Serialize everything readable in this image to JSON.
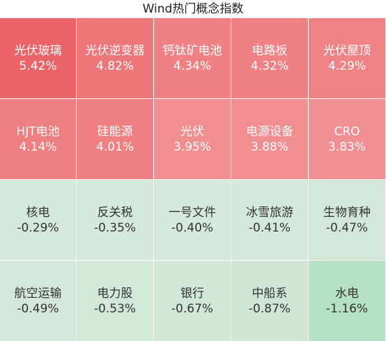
{
  "chart_data": {
    "type": "heatmap",
    "title": "Wind热门概念指数",
    "rows": 4,
    "cols": 5,
    "cells": [
      {
        "name": "光伏玻璃",
        "change": "5.42%",
        "value": 5.42,
        "color": "#ea6468"
      },
      {
        "name": "光伏逆变器",
        "change": "4.82%",
        "value": 4.82,
        "color": "#ed7679"
      },
      {
        "name": "钙钛矿电池",
        "change": "4.34%",
        "value": 4.34,
        "color": "#ef8083"
      },
      {
        "name": "电路板",
        "change": "4.32%",
        "value": 4.32,
        "color": "#ef8083"
      },
      {
        "name": "光伏屋顶",
        "change": "4.29%",
        "value": 4.29,
        "color": "#ef8285"
      },
      {
        "name": "HJT电池",
        "change": "4.14%",
        "value": 4.14,
        "color": "#ef7e81"
      },
      {
        "name": "硅能源",
        "change": "4.01%",
        "value": 4.01,
        "color": "#ef7f82"
      },
      {
        "name": "光伏",
        "change": "3.95%",
        "value": 3.95,
        "color": "#f08e90"
      },
      {
        "name": "电源设备",
        "change": "3.88%",
        "value": 3.88,
        "color": "#f08e90"
      },
      {
        "name": "CRO",
        "change": "3.83%",
        "value": 3.83,
        "color": "#f08f92"
      },
      {
        "name": "核电",
        "change": "-0.29%",
        "value": -0.29,
        "color": "#d4e9db"
      },
      {
        "name": "反关税",
        "change": "-0.35%",
        "value": -0.35,
        "color": "#d4e9db"
      },
      {
        "name": "一号文件",
        "change": "-0.40%",
        "value": -0.4,
        "color": "#d4e9db"
      },
      {
        "name": "冰雪旅游",
        "change": "-0.41%",
        "value": -0.41,
        "color": "#d4e9db"
      },
      {
        "name": "生物育种",
        "change": "-0.47%",
        "value": -0.47,
        "color": "#d3e8da"
      },
      {
        "name": "航空运输",
        "change": "-0.49%",
        "value": -0.49,
        "color": "#d3e8da"
      },
      {
        "name": "电力股",
        "change": "-0.53%",
        "value": -0.53,
        "color": "#d2e8d9"
      },
      {
        "name": "银行",
        "change": "-0.67%",
        "value": -0.67,
        "color": "#d1e7d8"
      },
      {
        "name": "中船系",
        "change": "-0.87%",
        "value": -0.87,
        "color": "#cfe6d6"
      },
      {
        "name": "水电",
        "change": "-1.16%",
        "value": -1.16,
        "color": "#b5e0c3"
      }
    ],
    "text_color_positive": "#ffffff",
    "text_color_negative": "#333333"
  }
}
